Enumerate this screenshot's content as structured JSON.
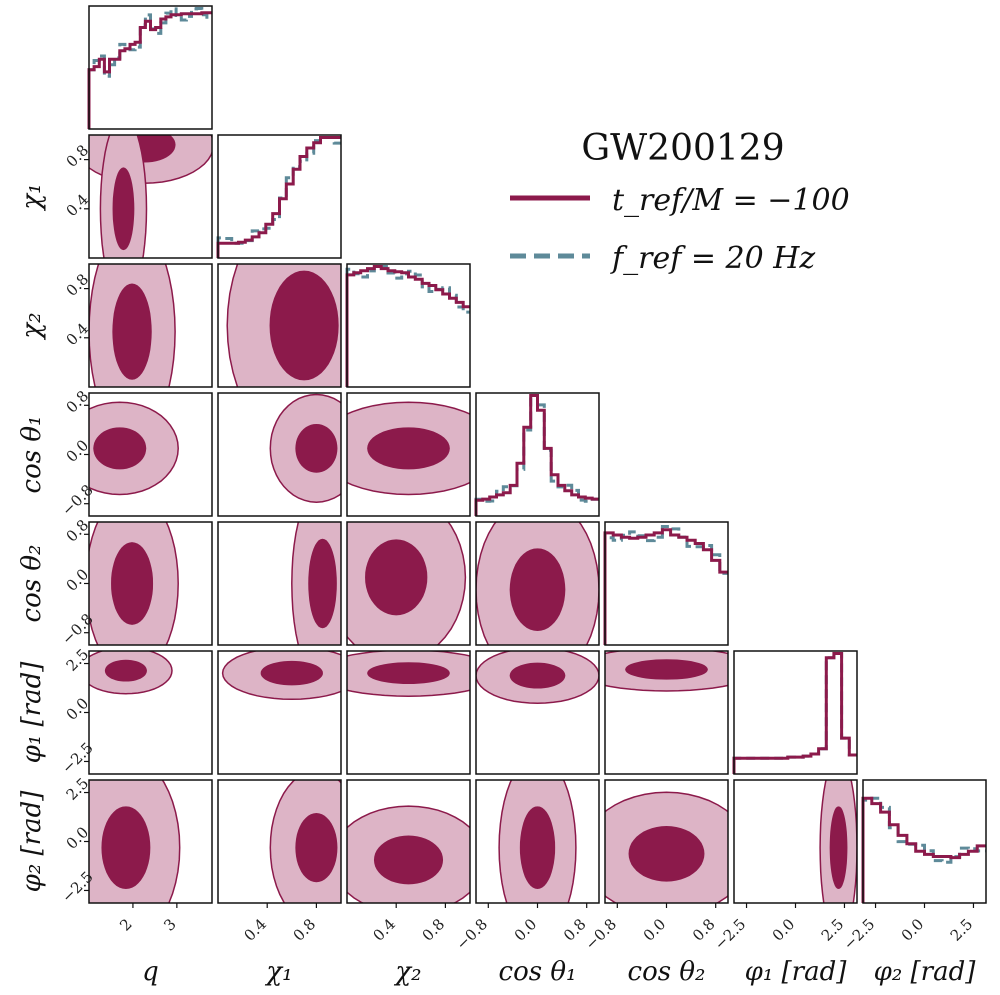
{
  "chart_data": {
    "type": "corner",
    "title": "GW200129",
    "parameters": [
      {
        "key": "q",
        "label": "q",
        "range": [
          1.0,
          3.8
        ],
        "ticks": [
          {
            "v": 2,
            "t": "2"
          },
          {
            "v": 3,
            "t": "3"
          }
        ]
      },
      {
        "key": "chi1",
        "label": "χ₁",
        "range": [
          0.0,
          1.0
        ],
        "ticks": [
          {
            "v": 0.4,
            "t": "0.4"
          },
          {
            "v": 0.8,
            "t": "0.8"
          }
        ]
      },
      {
        "key": "chi2",
        "label": "χ₂",
        "range": [
          0.0,
          1.0
        ],
        "ticks": [
          {
            "v": 0.4,
            "t": "0.4"
          },
          {
            "v": 0.8,
            "t": "0.8"
          }
        ]
      },
      {
        "key": "cos_theta1",
        "label": "cos θ₁",
        "range": [
          -1.0,
          1.0
        ],
        "ticks": [
          {
            "v": -0.8,
            "t": "−0.8"
          },
          {
            "v": 0.0,
            "t": "0.0"
          },
          {
            "v": 0.8,
            "t": "0.8"
          }
        ]
      },
      {
        "key": "cos_theta2",
        "label": "cos θ₂",
        "range": [
          -1.0,
          1.0
        ],
        "ticks": [
          {
            "v": -0.8,
            "t": "−0.8"
          },
          {
            "v": 0.0,
            "t": "0.0"
          },
          {
            "v": 0.8,
            "t": "0.8"
          }
        ]
      },
      {
        "key": "phi1",
        "label": "φ₁ [rad]",
        "range": [
          -3.14,
          3.14
        ],
        "ticks": [
          {
            "v": -2.5,
            "t": "−2.5"
          },
          {
            "v": 0.0,
            "t": "0.0"
          },
          {
            "v": 2.5,
            "t": "2.5"
          }
        ]
      },
      {
        "key": "phi2",
        "label": "φ₂ [rad]",
        "range": [
          -3.14,
          3.14
        ],
        "ticks": [
          {
            "v": -2.5,
            "t": "−2.5"
          },
          {
            "v": 0.0,
            "t": "0.0"
          },
          {
            "v": 2.5,
            "t": "2.5"
          }
        ]
      }
    ],
    "series": [
      {
        "name": "t_ref/M = −100",
        "color": "#8c1a4b",
        "fill_outer": "#ddb4c6",
        "style": "solid"
      },
      {
        "name": "f_ref = 20 Hz",
        "color": "#5e8a99",
        "style": "dashed"
      }
    ],
    "legend": {
      "title": "GW200129",
      "entries": [
        {
          "label": "t_ref/M = −100",
          "series": 0
        },
        {
          "label": "f_ref = 20 Hz",
          "series": 1
        }
      ],
      "placement": "top-right"
    },
    "histograms": [
      [
        [
          0.12,
          1.0,
          0.5,
          0.88,
          0.96
        ],
        [
          0.42,
          0.45,
          0.52,
          0.4
        ],
        [
          0.52,
          0.52,
          0.6,
          0.62
        ],
        [
          0.66,
          0.68,
          0.82,
          0.88
        ],
        [
          0.8,
          0.82,
          0.9,
          0.92
        ],
        [
          0.94,
          0.94,
          0.95,
          0.95
        ],
        [
          0.95,
          0.95,
          0.96,
          0.96
        ]
      ],
      [
        [
          0.12,
          0.0
        ],
        [
          0.0,
          0.0
        ],
        [
          0.0,
          0.01,
          0.03,
          0.06
        ],
        [
          0.1,
          0.18,
          0.28,
          0.42
        ],
        [
          0.56,
          0.7,
          0.82,
          0.9
        ],
        [
          0.95,
          1.0,
          1.0,
          1.0
        ]
      ],
      [
        [
          0.12,
          0.86,
          0.9
        ],
        [
          0.92,
          0.94,
          0.96,
          0.98
        ],
        [
          1.0,
          0.98,
          0.96,
          0.95
        ],
        [
          0.94,
          0.9,
          0.88,
          0.84
        ],
        [
          0.82,
          0.78,
          0.74,
          0.7
        ],
        [
          0.66,
          0.62
        ]
      ],
      [
        [
          0.12,
          0.0
        ],
        [
          0.01,
          0.02,
          0.04,
          0.06
        ],
        [
          0.08,
          0.15,
          0.36,
          0.7
        ],
        [
          1.0,
          0.86,
          0.5,
          0.25
        ],
        [
          0.15,
          0.1,
          0.06,
          0.04
        ],
        [
          0.03,
          0.02
        ]
      ],
      [
        [
          0.12,
          0.82,
          0.86,
          0.9
        ],
        [
          0.92,
          0.9,
          0.88,
          0.87
        ],
        [
          0.88,
          0.9,
          0.92,
          0.95
        ],
        [
          0.9,
          0.88,
          0.85,
          0.82
        ],
        [
          0.76,
          0.66,
          0.55
        ]
      ],
      [
        [
          0.12,
          0.02,
          0.02,
          0.02
        ],
        [
          0.01,
          0.01,
          0.01,
          0.01
        ],
        [
          0.01,
          0.01,
          0.01,
          0.02
        ],
        [
          0.02,
          0.03,
          0.05,
          0.1
        ],
        [
          0.96,
          1.0,
          0.2,
          0.04
        ]
      ],
      [
        [
          0.12,
          0.55,
          0.72,
          0.8
        ],
        [
          0.85,
          0.8,
          0.72,
          0.6
        ],
        [
          0.5,
          0.42,
          0.35,
          0.32
        ],
        [
          0.3,
          0.3,
          0.29,
          0.32
        ],
        [
          0.35,
          0.4
        ]
      ]
    ]
  }
}
